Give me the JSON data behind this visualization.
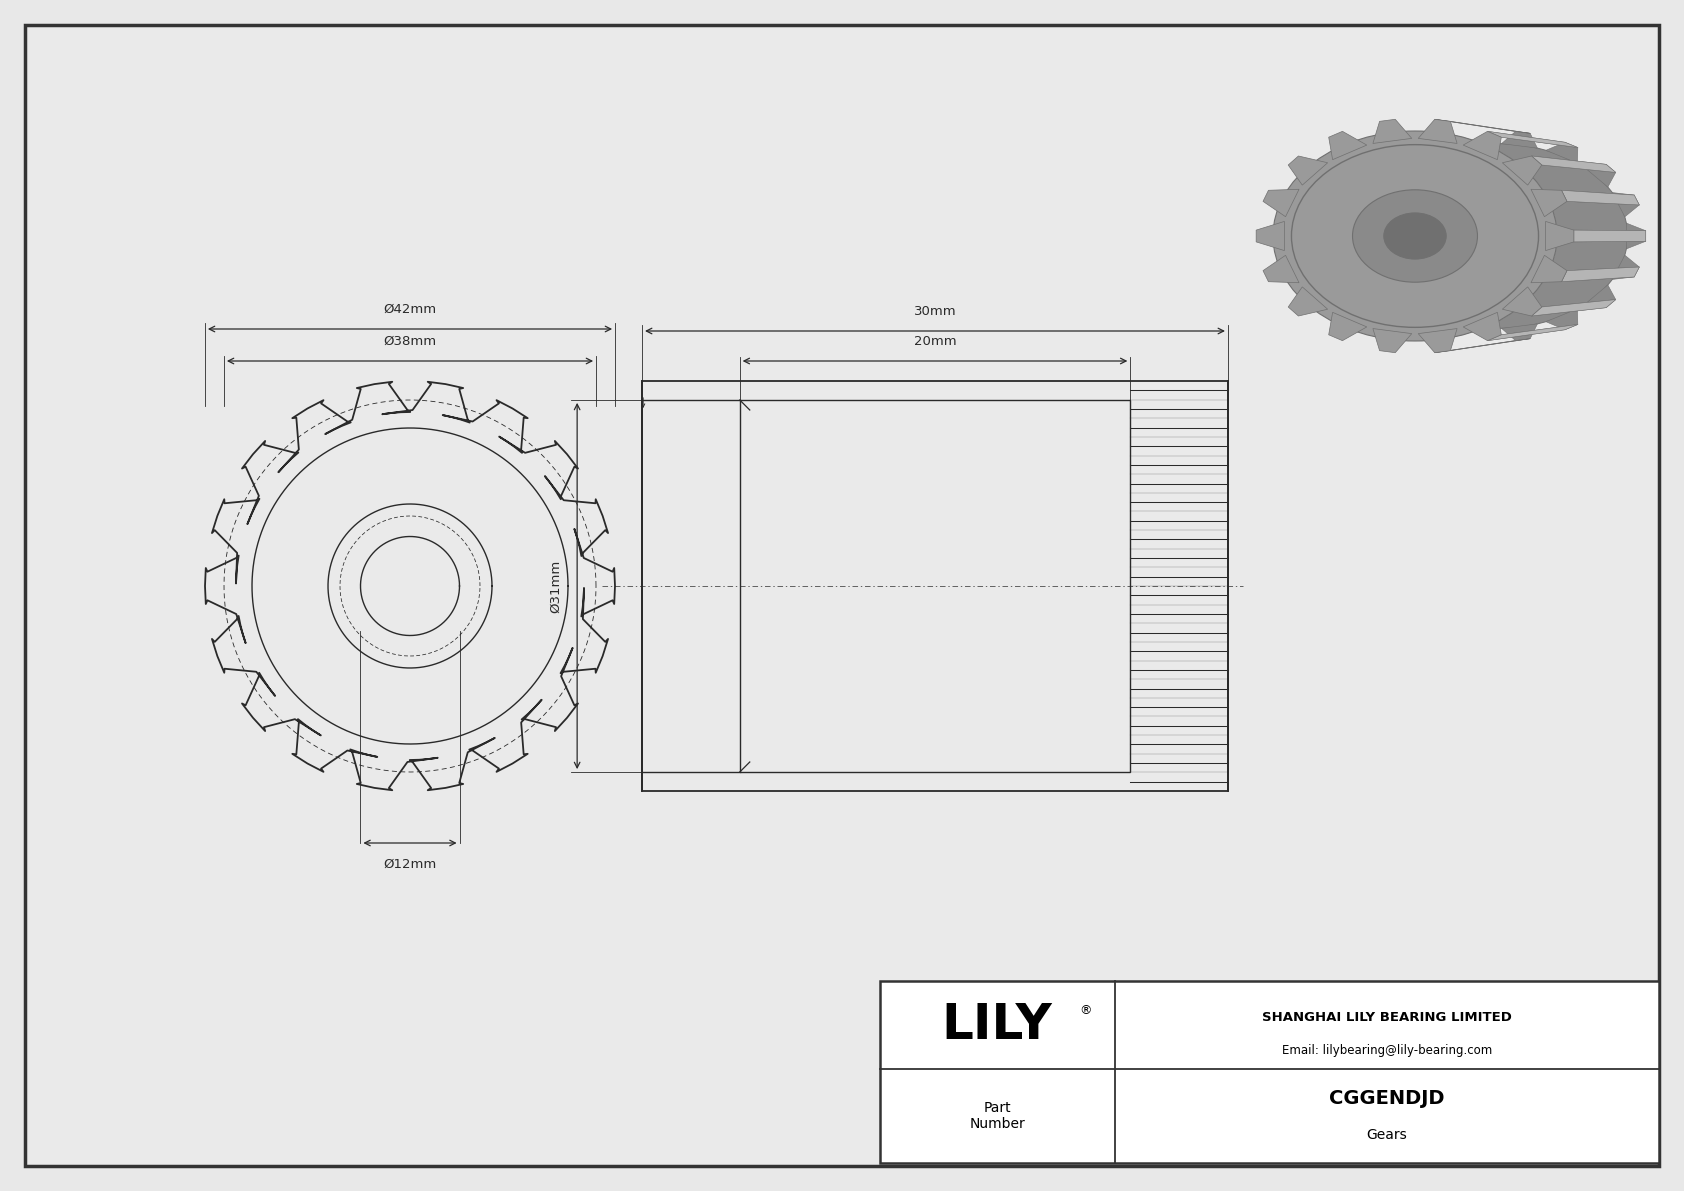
{
  "bg_color": "#e8e8e8",
  "page_color": "#ebebeb",
  "border_color": "#333333",
  "line_color": "#2a2a2a",
  "dim_color": "#2a2a2a",
  "title": "CGGENDJD",
  "subtitle": "Gears",
  "company": "SHANGHAI LILY BEARING LIMITED",
  "email": "Email: lilybearing@lily-bearing.com",
  "logo": "LILY",
  "part_label": "Part\nNumber",
  "dim_d42": "Ø42mm",
  "dim_d38": "Ø38mm",
  "dim_d12": "Ø12mm",
  "dim_d31": "Ø31mm",
  "dim_30": "30mm",
  "dim_20": "20mm",
  "num_teeth": 18,
  "gear3d_color": "#9a9a9a",
  "gear3d_dark": "#707070",
  "gear3d_light": "#b5b5b5",
  "gear3d_mid": "#8a8a8a"
}
